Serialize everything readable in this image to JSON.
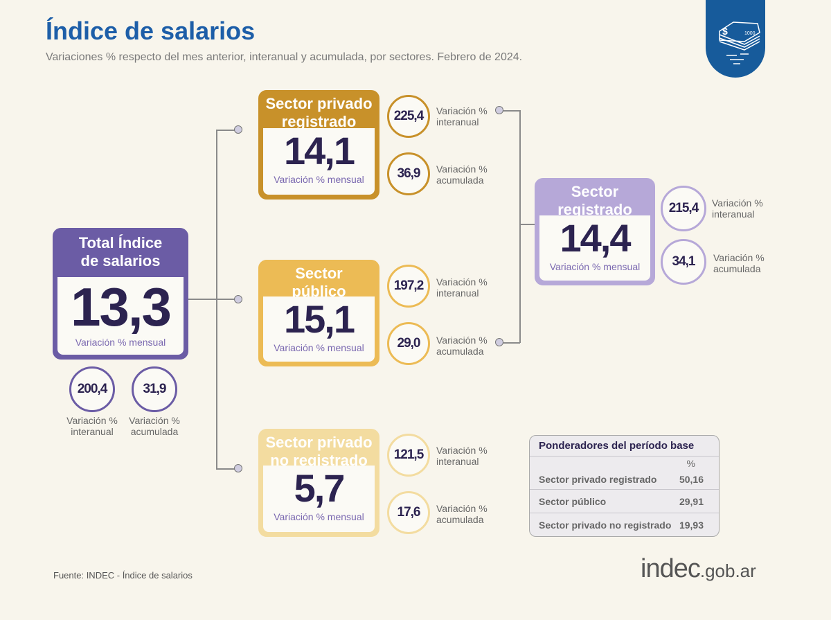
{
  "header": {
    "title": "Índice de salarios",
    "subtitle": "Variaciones % respecto del mes anterior, interanual y acumulada, por sectores. Febrero de 2024."
  },
  "badge_icon": "money-stack-icon",
  "colors": {
    "total": "#6b5ca5",
    "privado_registrado": "#c8912a",
    "publico": "#ecbb55",
    "privado_no_registrado": "#f3dca0",
    "registrado": "#b6a8d8",
    "title": "#1d5ea8"
  },
  "total": {
    "title": "Total Índice de salarios",
    "value": "13,3",
    "label": "Variación % mensual",
    "interanual": "200,4",
    "interanual_label": "Variación % interanual",
    "acumulada": "31,9",
    "acumulada_label": "Variación % acumulada"
  },
  "privado_registrado": {
    "title": "Sector privado registrado",
    "value": "14,1",
    "label": "Variación % mensual",
    "interanual": "225,4",
    "interanual_label": "Variación % interanual",
    "acumulada": "36,9",
    "acumulada_label": "Variación % acumulada"
  },
  "publico": {
    "title": "Sector público",
    "value": "15,1",
    "label": "Variación % mensual",
    "interanual": "197,2",
    "interanual_label": "Variación % interanual",
    "acumulada": "29,0",
    "acumulada_label": "Variación % acumulada"
  },
  "privado_no_registrado": {
    "title": "Sector privado no registrado",
    "value": "5,7",
    "label": "Variación % mensual",
    "interanual": "121,5",
    "interanual_label": "Variación % interanual",
    "acumulada": "17,6",
    "acumulada_label": "Variación % acumulada"
  },
  "registrado": {
    "title": "Sector registrado",
    "value": "14,4",
    "label": "Variación % mensual",
    "interanual": "215,4",
    "interanual_label": "Variación % interanual",
    "acumulada": "34,1",
    "acumulada_label": "Variación % acumulada"
  },
  "ponderadores": {
    "title": "Ponderadores del período base",
    "unit": "%",
    "rows": [
      {
        "label": "Sector privado registrado",
        "value": "50,16"
      },
      {
        "label": "Sector público",
        "value": "29,91"
      },
      {
        "label": "Sector privado no registrado",
        "value": "19,93"
      }
    ]
  },
  "footer": {
    "source": "Fuente: INDEC - Índice de salarios",
    "logo_main": "indec",
    "logo_domain": ".gob.ar"
  }
}
